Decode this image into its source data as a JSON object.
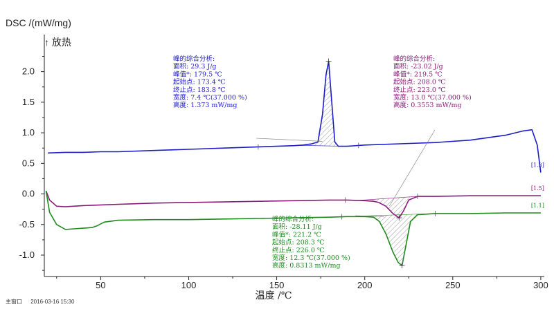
{
  "footer": {
    "window_label": "主窗口",
    "timestamp": "2016-03-16 15:30"
  },
  "chart_data": {
    "type": "line",
    "ylabel": "DSC /(mW/mg)",
    "exo_label": "↑ 放热",
    "xlabel": "温度 /℃",
    "xlim": [
      18,
      302
    ],
    "ylim": [
      -1.35,
      2.38
    ],
    "x_ticks": [
      50,
      100,
      150,
      200,
      250,
      300
    ],
    "y_ticks": [
      -1.0,
      -0.5,
      0.0,
      0.5,
      1.0,
      1.5,
      2.0
    ],
    "y_tick_labels": [
      "-1.0",
      "-0.5",
      "0.0",
      "0.5",
      "1.0",
      "1.5",
      "2.0"
    ],
    "grid": false,
    "series": [
      {
        "name": "[1.3]",
        "color": "#1b1bc8",
        "x": [
          20,
          30,
          40,
          50,
          60,
          80,
          100,
          120,
          140,
          160,
          165,
          170,
          173.4,
          176,
          178,
          179.5,
          181,
          183,
          185,
          190,
          200,
          220,
          240,
          260,
          280,
          290,
          295,
          298,
          300
        ],
        "y": [
          0.67,
          0.68,
          0.68,
          0.69,
          0.69,
          0.71,
          0.73,
          0.75,
          0.77,
          0.79,
          0.8,
          0.82,
          0.85,
          1.3,
          1.95,
          2.17,
          1.6,
          0.85,
          0.78,
          0.78,
          0.8,
          0.82,
          0.84,
          0.88,
          0.96,
          1.03,
          1.05,
          0.8,
          0.35
        ]
      },
      {
        "name": "[1.5]",
        "color": "#8a1a7a",
        "x": [
          19,
          21,
          25,
          30,
          40,
          60,
          80,
          100,
          120,
          140,
          160,
          180,
          190,
          200,
          205,
          208,
          212,
          216,
          219.5,
          222,
          225,
          230,
          240,
          260,
          280,
          300
        ],
        "y": [
          0.05,
          -0.1,
          -0.2,
          -0.21,
          -0.19,
          -0.17,
          -0.15,
          -0.14,
          -0.13,
          -0.12,
          -0.11,
          -0.1,
          -0.1,
          -0.11,
          -0.12,
          -0.14,
          -0.2,
          -0.32,
          -0.39,
          -0.28,
          -0.1,
          -0.04,
          -0.04,
          -0.03,
          -0.03,
          -0.03
        ]
      },
      {
        "name": "[1.1]",
        "color": "#1e8a1e",
        "x": [
          19,
          21,
          25,
          30,
          35,
          40,
          45,
          48,
          52,
          60,
          80,
          100,
          120,
          140,
          160,
          180,
          190,
          200,
          205,
          208.3,
          212,
          216,
          219,
          221.2,
          223,
          226,
          230,
          240,
          260,
          280,
          300
        ],
        "y": [
          0.05,
          -0.3,
          -0.5,
          -0.58,
          -0.57,
          -0.56,
          -0.55,
          -0.52,
          -0.46,
          -0.43,
          -0.42,
          -0.42,
          -0.41,
          -0.4,
          -0.39,
          -0.38,
          -0.37,
          -0.37,
          -0.38,
          -0.45,
          -0.65,
          -0.95,
          -1.12,
          -1.17,
          -0.9,
          -0.45,
          -0.34,
          -0.32,
          -0.32,
          -0.31,
          -0.31
        ]
      }
    ],
    "annotations": [
      {
        "series": "[1.3]",
        "lines": [
          "峰的综合分析:",
          "面积:    29.3 J/g",
          "峰值*:   179.5 ℃",
          "起始点: 173.4 ℃",
          "终止点: 183.8 ℃",
          "宽度:      7.4 ℃(37.000 %)",
          "高度:     1.373 mW/mg"
        ],
        "target": [
          176,
          0.86
        ],
        "hatch_range": [
          162,
          190
        ]
      },
      {
        "series": "[1.5]",
        "lines": [
          "峰的综合分析:",
          "面积:    -23.02 J/g",
          "峰值*:    219.5 ℃",
          "起始点: 208.0 ℃",
          "终止点: 223.0 ℃",
          "宽度:      13.0 ℃(37.000 %)",
          "高度:      0.3553 mW/mg"
        ],
        "target": [
          214,
          -0.2
        ],
        "hatch_range": [
          196,
          230
        ]
      },
      {
        "series": "[1.1]",
        "lines": [
          "峰的综合分析:",
          "面积:    -28.11 J/g",
          "峰值*:   221.2 ℃",
          "起始点: 208.3 ℃",
          "终止点: 226.0 ℃",
          "宽度:     12.3 ℃(37.000 %)",
          "高度:      0.8313 mW/mg"
        ],
        "target": [
          211,
          -0.37
        ],
        "hatch_range": [
          187,
          240
        ]
      }
    ],
    "baseline_markers": [
      {
        "series": "[1.3]",
        "x": [
          139.5,
          196.5
        ]
      },
      {
        "series": "[1.5]",
        "x": [
          189,
          230
        ]
      },
      {
        "series": "[1.1]",
        "x": [
          187,
          240
        ]
      }
    ]
  }
}
